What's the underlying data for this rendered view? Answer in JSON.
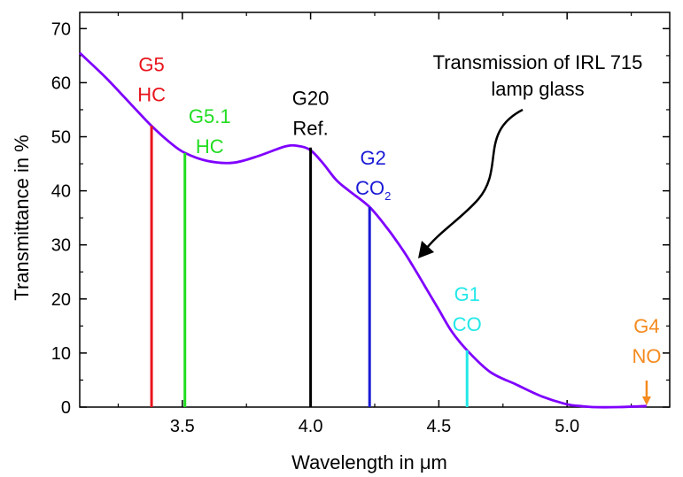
{
  "chart_data": {
    "type": "line",
    "xlabel_prefix": "Wavelength in ",
    "xlabel_unit": "μm",
    "ylabel": "Transmittance in %",
    "xlim": [
      3.1,
      5.4
    ],
    "ylim": [
      0,
      73
    ],
    "x_ticks": [
      3.5,
      4.0,
      4.5,
      5.0
    ],
    "x_tick_labels": [
      "3.5",
      "4.0",
      "4.5",
      "5.0"
    ],
    "y_ticks": [
      0,
      10,
      20,
      30,
      40,
      50,
      60,
      70
    ],
    "y_tick_labels": [
      "0",
      "10",
      "20",
      "30",
      "40",
      "50",
      "60",
      "70"
    ],
    "series": [
      {
        "color": "#7f00ff",
        "x": [
          3.1,
          3.2,
          3.3,
          3.38,
          3.45,
          3.51,
          3.6,
          3.7,
          3.8,
          3.9,
          3.95,
          4.0,
          4.05,
          4.1,
          4.15,
          4.23,
          4.3,
          4.36,
          4.4,
          4.45,
          4.5,
          4.55,
          4.61,
          4.7,
          4.8,
          4.9,
          5.0,
          5.05,
          5.1,
          5.2,
          5.31
        ],
        "y": [
          65.5,
          61,
          56,
          52,
          49,
          47,
          45.5,
          45.2,
          46.5,
          48.2,
          48.3,
          47.5,
          45,
          42,
          40,
          37,
          33,
          29,
          26,
          22,
          18,
          14,
          10.5,
          6.5,
          4.2,
          2,
          0.5,
          0.2,
          0,
          0,
          0.2
        ]
      }
    ],
    "channels": [
      {
        "label1": "G5",
        "label2": "HC",
        "x": 3.38,
        "y": 52,
        "color": "#e8141c"
      },
      {
        "label1": "G5.1",
        "label2": "HC",
        "x": 3.51,
        "y": 47,
        "color": "#22dd22"
      },
      {
        "label1": "G20",
        "label2": "Ref.",
        "x": 4.0,
        "y": 48,
        "color": "#000000"
      },
      {
        "label1": "G2",
        "label2": "CO",
        "label2_sub": "2",
        "x": 4.23,
        "y": 37,
        "color": "#1a1ad6"
      },
      {
        "label1": "G1",
        "label2": "CO",
        "x": 4.61,
        "y": 10.5,
        "color": "#22e8e8"
      },
      {
        "label1": "G4",
        "label2": "NO",
        "x": 5.31,
        "y": 0,
        "color": "#f58a1f"
      }
    ],
    "annotation": {
      "line1": "Transmission of IRL 715",
      "line2": "lamp glass"
    }
  }
}
